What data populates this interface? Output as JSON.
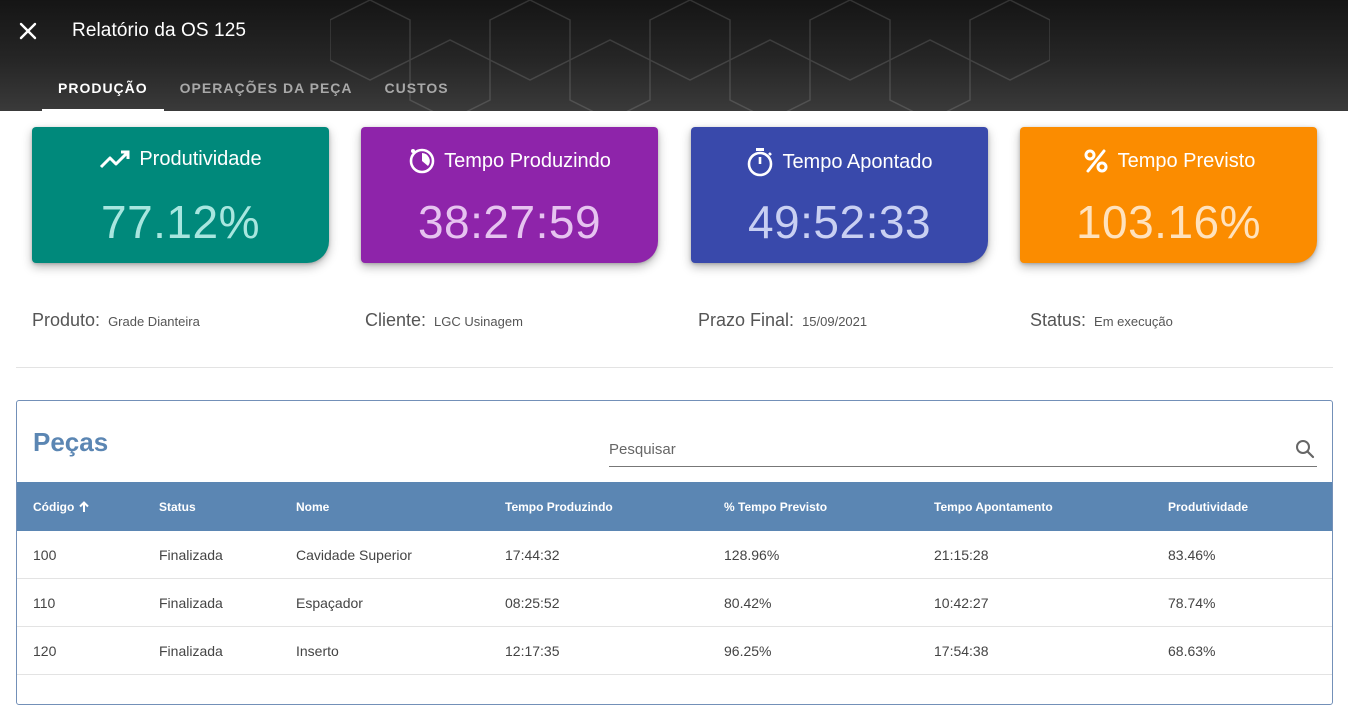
{
  "header": {
    "title": "Relatório da OS 125",
    "close_icon": "close-icon",
    "tabs": [
      {
        "label": "PRODUÇÃO",
        "active": true
      },
      {
        "label": "OPERAÇÕES DA PEÇA",
        "active": false
      },
      {
        "label": "CUSTOS",
        "active": false
      }
    ]
  },
  "kpis": [
    {
      "label": "Produtividade",
      "value": "77.12%",
      "icon": "trending-up-icon",
      "color": "#00897b"
    },
    {
      "label": "Tempo Produzindo",
      "value": "38:27:59",
      "icon": "timelapse-icon",
      "color": "#8e24aa"
    },
    {
      "label": "Tempo Apontado",
      "value": "49:52:33",
      "icon": "timer-icon",
      "color": "#3949ab"
    },
    {
      "label": "Tempo Previsto",
      "value": "103.16%",
      "icon": "percent-icon",
      "color": "#fb8c00"
    }
  ],
  "info": {
    "produto": {
      "label": "Produto:",
      "value": "Grade Dianteira"
    },
    "cliente": {
      "label": "Cliente:",
      "value": "LGC Usinagem"
    },
    "prazo": {
      "label": "Prazo Final:",
      "value": "15/09/2021"
    },
    "status": {
      "label": "Status:",
      "value": "Em execução"
    }
  },
  "pecas": {
    "title": "Peças",
    "search_placeholder": "Pesquisar",
    "columns": [
      "Código",
      "Status",
      "Nome",
      "Tempo Produzindo",
      "% Tempo Previsto",
      "Tempo Apontamento",
      "Produtividade"
    ],
    "rows": [
      [
        "100",
        "Finalizada",
        "Cavidade Superior",
        "17:44:32",
        "128.96%",
        "21:15:28",
        "83.46%"
      ],
      [
        "110",
        "Finalizada",
        "Espaçador",
        "08:25:52",
        "80.42%",
        "10:42:27",
        "78.74%"
      ],
      [
        "120",
        "Finalizada",
        "Inserto",
        "12:17:35",
        "96.25%",
        "17:54:38",
        "68.63%"
      ]
    ]
  }
}
